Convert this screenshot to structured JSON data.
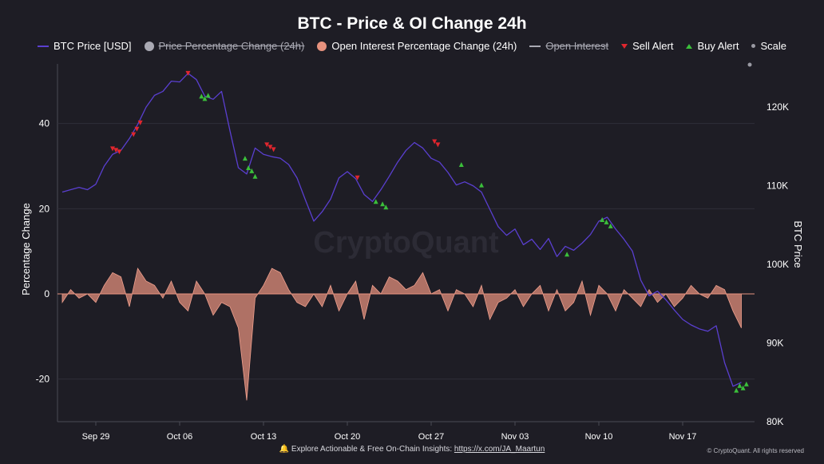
{
  "chart_data": {
    "type": "line",
    "title": "BTC - Price & OI Change 24h",
    "ylabel": "Percentage Change",
    "y2label": "BTC Price",
    "ylim": [
      -30,
      54
    ],
    "y2lim": [
      80000,
      125500
    ],
    "yticks": [
      -20,
      0,
      20,
      40
    ],
    "y2ticks": [
      80000,
      90000,
      100000,
      110000,
      120000
    ],
    "y2tick_labels": [
      "80K",
      "90K",
      "100K",
      "110K",
      "120K"
    ],
    "xlim": [
      0,
      82
    ],
    "xticks": [
      {
        "label": "Sep 29",
        "x": 4
      },
      {
        "label": "Oct 06",
        "x": 14
      },
      {
        "label": "Oct 13",
        "x": 24
      },
      {
        "label": "Oct 20",
        "x": 34
      },
      {
        "label": "Oct 27",
        "x": 44
      },
      {
        "label": "Nov 03",
        "x": 54
      },
      {
        "label": "Nov 10",
        "x": 64
      },
      {
        "label": "Nov 17",
        "x": 74
      }
    ],
    "legend": [
      {
        "name": "BTC Price [USD]",
        "marker": "line",
        "color": "#5a3fd0",
        "enabled": true
      },
      {
        "name": "Price Percentage Change (24h)",
        "marker": "dot",
        "color": "#a9a9b3",
        "enabled": false
      },
      {
        "name": "Open Interest Percentage Change (24h)",
        "marker": "dot",
        "color": "#e7927e",
        "enabled": true
      },
      {
        "name": "Open Interest",
        "marker": "line",
        "color": "#a9a9b3",
        "enabled": false
      },
      {
        "name": "Sell Alert",
        "marker": "triangle-down",
        "color": "#e0262e",
        "enabled": true
      },
      {
        "name": "Buy Alert",
        "marker": "triangle-up",
        "color": "#3bbf3b",
        "enabled": true
      },
      {
        "name": "Scale",
        "marker": "small-dot",
        "color": "#9a9aa3",
        "enabled": true
      }
    ],
    "series": [
      {
        "name": "BTC Price [USD]",
        "axis": "right",
        "color": "#5a3fd0",
        "x": [
          0,
          1,
          2,
          3,
          4,
          5,
          6,
          7,
          8,
          9,
          10,
          11,
          12,
          13,
          14,
          15,
          16,
          17,
          18,
          19,
          20,
          21,
          22,
          23,
          24,
          25,
          26,
          27,
          28,
          29,
          30,
          31,
          32,
          33,
          34,
          35,
          36,
          37,
          38,
          39,
          40,
          41,
          42,
          43,
          44,
          45,
          46,
          47,
          48,
          49,
          50,
          51,
          52,
          53,
          54,
          55,
          56,
          57,
          58,
          59,
          60,
          61,
          62,
          63,
          64,
          65,
          66,
          67,
          68,
          69,
          70,
          71,
          72,
          73,
          74,
          75,
          76,
          77,
          78,
          79,
          80,
          81
        ],
        "values": [
          109200,
          109500,
          109800,
          109500,
          110200,
          112500,
          114000,
          114500,
          116000,
          117800,
          120000,
          121500,
          122000,
          123300,
          123200,
          124300,
          123500,
          121400,
          121000,
          122000,
          117000,
          112300,
          111500,
          114800,
          114000,
          113700,
          113500,
          112700,
          111000,
          108200,
          105500,
          106700,
          108300,
          111000,
          111800,
          110900,
          108900,
          108000,
          109500,
          111200,
          113000,
          114500,
          115500,
          114800,
          113500,
          113000,
          111700,
          110100,
          110500,
          110000,
          109200,
          107000,
          104800,
          103700,
          104500,
          102500,
          103200,
          101900,
          103300,
          101000,
          102300,
          101800,
          102700,
          103800,
          105500,
          106000,
          104500,
          103200,
          101700,
          98000,
          96000,
          96600,
          95500,
          94200,
          93000,
          92300,
          91800,
          91500,
          92200,
          87500,
          84500,
          85000
        ]
      },
      {
        "name": "Open Interest Percentage Change (24h)",
        "axis": "left",
        "color": "#e7927e",
        "x": [
          0,
          1,
          2,
          3,
          4,
          5,
          6,
          7,
          8,
          9,
          10,
          11,
          12,
          13,
          14,
          15,
          16,
          17,
          18,
          19,
          20,
          21,
          22,
          23,
          24,
          25,
          26,
          27,
          28,
          29,
          30,
          31,
          32,
          33,
          34,
          35,
          36,
          37,
          38,
          39,
          40,
          41,
          42,
          43,
          44,
          45,
          46,
          47,
          48,
          49,
          50,
          51,
          52,
          53,
          54,
          55,
          56,
          57,
          58,
          59,
          60,
          61,
          62,
          63,
          64,
          65,
          66,
          67,
          68,
          69,
          70,
          71,
          72,
          73,
          74,
          75,
          76,
          77,
          78,
          79,
          80,
          81
        ],
        "values": [
          -2,
          1,
          -1,
          0,
          -2,
          2,
          5,
          4,
          -3,
          6,
          3,
          2,
          -1,
          3,
          -2,
          -4,
          3,
          0,
          -5,
          -2,
          -3,
          -8,
          -25,
          -1,
          2,
          6,
          5,
          1,
          -2,
          -3,
          0,
          -3,
          2,
          -4,
          0,
          3,
          -6,
          2,
          0,
          4,
          3,
          1,
          2,
          5,
          0,
          1,
          -4,
          1,
          0,
          -3,
          2,
          -6,
          -2,
          -1,
          1,
          -3,
          0,
          2,
          -4,
          1,
          -4,
          -2,
          3,
          -5,
          2,
          0,
          -4,
          1,
          -1,
          -3,
          1,
          -2,
          0,
          -3,
          -1,
          2,
          0,
          -1,
          2,
          1,
          -4,
          -8
        ]
      }
    ],
    "sell_alerts": [
      {
        "x": 6.0,
        "y": 114700
      },
      {
        "x": 6.4,
        "y": 114500
      },
      {
        "x": 6.8,
        "y": 114300
      },
      {
        "x": 8.5,
        "y": 116500
      },
      {
        "x": 8.9,
        "y": 117200
      },
      {
        "x": 9.3,
        "y": 118000
      },
      {
        "x": 15.0,
        "y": 124300
      },
      {
        "x": 24.4,
        "y": 115200
      },
      {
        "x": 24.8,
        "y": 114900
      },
      {
        "x": 25.2,
        "y": 114600
      },
      {
        "x": 35.2,
        "y": 111000
      },
      {
        "x": 44.4,
        "y": 115600
      },
      {
        "x": 44.8,
        "y": 115200
      }
    ],
    "buy_alerts": [
      {
        "x": 16.6,
        "y": 121400
      },
      {
        "x": 17.0,
        "y": 121100
      },
      {
        "x": 17.4,
        "y": 121500
      },
      {
        "x": 21.8,
        "y": 113500
      },
      {
        "x": 22.2,
        "y": 112300
      },
      {
        "x": 22.6,
        "y": 111900
      },
      {
        "x": 23.0,
        "y": 111200
      },
      {
        "x": 37.4,
        "y": 108000
      },
      {
        "x": 38.2,
        "y": 107700
      },
      {
        "x": 38.6,
        "y": 107300
      },
      {
        "x": 47.6,
        "y": 112700
      },
      {
        "x": 50.0,
        "y": 110100
      },
      {
        "x": 60.2,
        "y": 101300
      },
      {
        "x": 64.4,
        "y": 105700
      },
      {
        "x": 64.9,
        "y": 105400
      },
      {
        "x": 65.4,
        "y": 104900
      },
      {
        "x": 80.4,
        "y": 84000
      },
      {
        "x": 80.8,
        "y": 84600
      },
      {
        "x": 81.2,
        "y": 84300
      },
      {
        "x": 81.6,
        "y": 84800
      }
    ],
    "scale_marker": {
      "x": 82,
      "y": 125400
    },
    "watermark": "CryptoQuant"
  },
  "footer": {
    "bell": "🔔",
    "text": "Explore Actionable & Free On-Chain Insights: ",
    "link": "https://x.com/JA_Maartun"
  },
  "credit": "© CryptoQuant. All rights reserved"
}
